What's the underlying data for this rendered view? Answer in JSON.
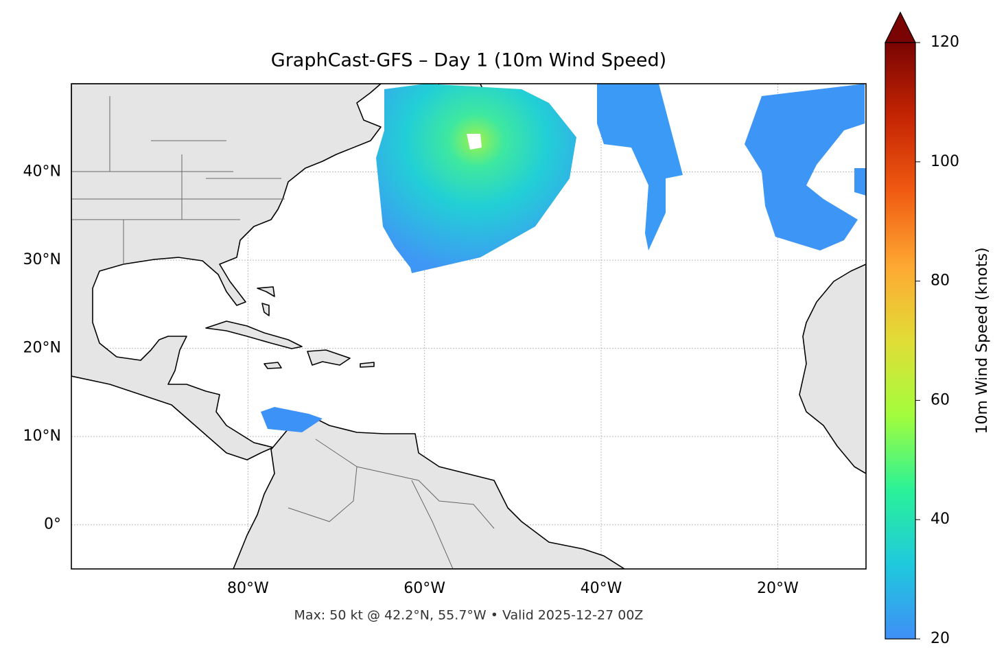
{
  "chart_data": {
    "type": "map",
    "title": "GraphCast-GFS – Day 1 (10m Wind Speed)",
    "subtitle": "Max: 50 kt @ 42.2°N, 55.7°W • Valid 2025-12-27 00Z",
    "xlim": [
      -100,
      -10
    ],
    "ylim": [
      -5,
      50
    ],
    "xticks": [
      {
        "value": -80,
        "label": "80°W"
      },
      {
        "value": -60,
        "label": "60°W"
      },
      {
        "value": -40,
        "label": "40°W"
      },
      {
        "value": -20,
        "label": "20°W"
      }
    ],
    "yticks": [
      {
        "value": 0,
        "label": "0°"
      },
      {
        "value": 10,
        "label": "10°N"
      },
      {
        "value": 20,
        "label": "20°N"
      },
      {
        "value": 30,
        "label": "30°N"
      },
      {
        "value": 40,
        "label": "40°N"
      }
    ],
    "grid": true,
    "colorbar": {
      "label": "10m Wind Speed (knots)",
      "ylim": [
        20,
        120
      ],
      "yticks": [
        20,
        40,
        60,
        80,
        100,
        120
      ],
      "colors": [
        "#3f8ff7",
        "#1fc9dd",
        "#2af298",
        "#a3fd3c",
        "#e1dd37",
        "#fea832",
        "#f05b12",
        "#c52503",
        "#7a0403"
      ],
      "extend": "max"
    }
  }
}
